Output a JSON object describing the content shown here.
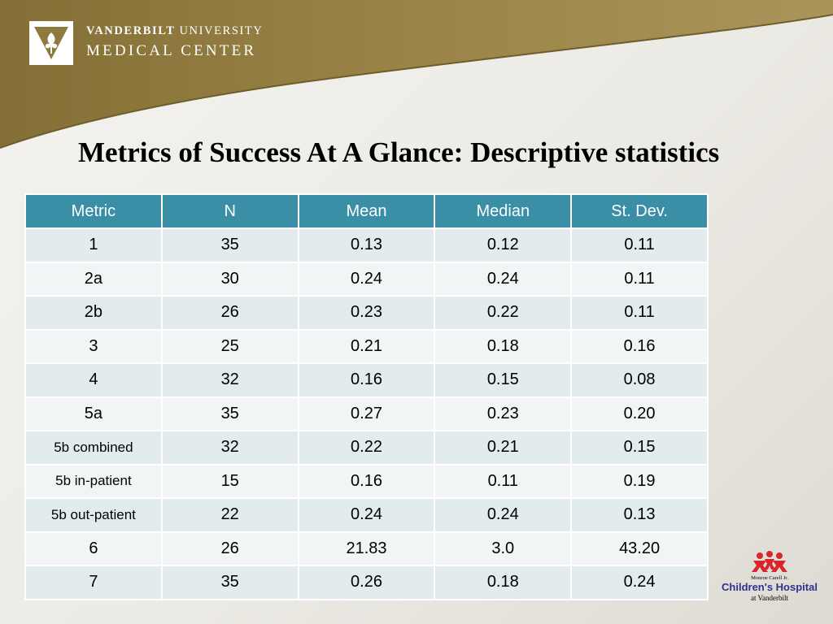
{
  "header": {
    "logo_line1_bold": "VANDERBILT",
    "logo_line1_light": "UNIVERSITY",
    "logo_line2": "MEDICAL CENTER"
  },
  "title": "Metrics of Success At A Glance: Descriptive statistics",
  "table": {
    "headers": [
      "Metric",
      "N",
      "Mean",
      "Median",
      "St. Dev."
    ],
    "rows": [
      [
        "1",
        "35",
        "0.13",
        "0.12",
        "0.11"
      ],
      [
        "2a",
        "30",
        "0.24",
        "0.24",
        "0.11"
      ],
      [
        "2b",
        "26",
        "0.23",
        "0.22",
        "0.11"
      ],
      [
        "3",
        "25",
        "0.21",
        "0.18",
        "0.16"
      ],
      [
        "4",
        "32",
        "0.16",
        "0.15",
        "0.08"
      ],
      [
        "5a",
        "35",
        "0.27",
        "0.23",
        "0.20"
      ],
      [
        "5b combined",
        "32",
        "0.22",
        "0.21",
        "0.15"
      ],
      [
        "5b in-patient",
        "15",
        "0.16",
        "0.11",
        "0.19"
      ],
      [
        "5b out-patient",
        "22",
        "0.24",
        "0.24",
        "0.13"
      ],
      [
        "6",
        "26",
        "21.83",
        "3.0",
        "43.20"
      ],
      [
        "7",
        "35",
        "0.26",
        "0.18",
        "0.24"
      ]
    ]
  },
  "footer_logo": {
    "line1": "Monroe Carell Jr.",
    "line2": "Children's Hospital",
    "line3": "at Vanderbilt"
  },
  "colors": {
    "banner": "#8f7a3e",
    "table_header": "#3a8fa6",
    "row_odd": "#e2ecef",
    "row_even": "#f1f5f6",
    "children_logo_red": "#d8262c",
    "children_logo_blue": "#2e3192"
  }
}
